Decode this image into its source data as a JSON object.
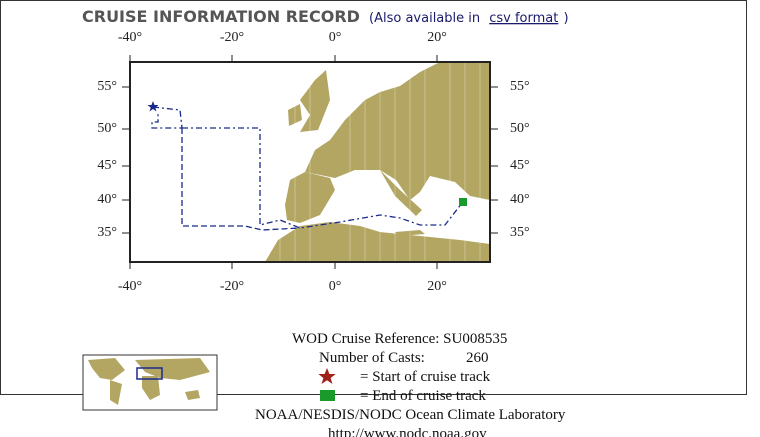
{
  "header": {
    "title": "CRUISE INFORMATION RECORD",
    "note_prefix": "(Also available in",
    "link": "csv format",
    "note_suffix": ")"
  },
  "map": {
    "lon_labels": [
      "-40°",
      "-20°",
      "0°",
      "20°"
    ],
    "lat_labels": [
      "55°",
      "50°",
      "45°",
      "40°",
      "35°"
    ]
  },
  "info": {
    "cruise_reference": "WOD Cruise Reference: SU008535",
    "casts_label": "Number of Casts:",
    "casts": 260,
    "start_legend": "= Start of cruise track",
    "end_legend": "= End of cruise track",
    "lab": "NOAA/NESDIS/NODC Ocean Climate Laboratory",
    "url": "http://www.nodc.noaa.gov"
  }
}
